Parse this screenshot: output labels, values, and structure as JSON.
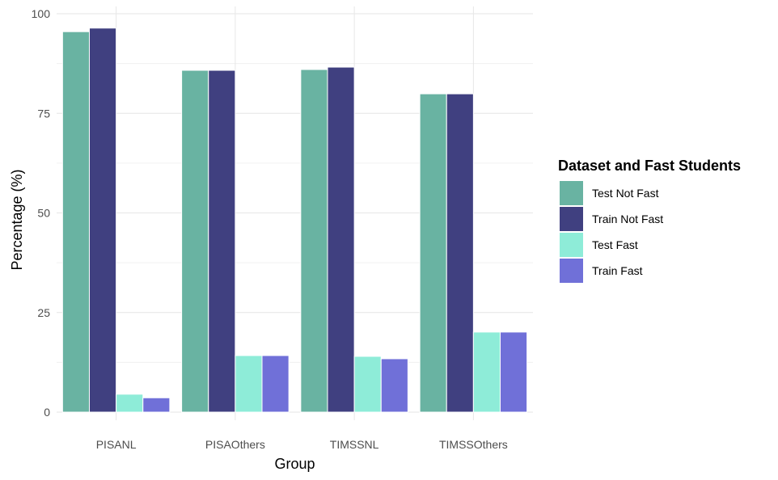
{
  "chart_data": {
    "type": "bar",
    "xlabel": "Group",
    "ylabel": "Percentage (%)",
    "categories": [
      "PISANL",
      "PISAOthers",
      "TIMSSNL",
      "TIMSSOthers"
    ],
    "ylim": [
      0,
      100
    ],
    "yticks": [
      0,
      25,
      50,
      75,
      100
    ],
    "grid": true,
    "legend": {
      "title": "Dataset and Fast Students",
      "placement": "right"
    },
    "series": [
      {
        "name": "Test Not Fast",
        "color": "#69b3a2",
        "values": [
          95.5,
          85.8,
          86.0,
          79.9
        ]
      },
      {
        "name": "Train Not Fast",
        "color": "#404080",
        "values": [
          96.4,
          85.8,
          86.6,
          79.9
        ]
      },
      {
        "name": "Test Fast",
        "color": "#8eecd8",
        "values": [
          4.5,
          14.2,
          14.0,
          20.1
        ]
      },
      {
        "name": "Train Fast",
        "color": "#7070d8",
        "values": [
          3.6,
          14.2,
          13.4,
          20.1
        ]
      }
    ]
  }
}
